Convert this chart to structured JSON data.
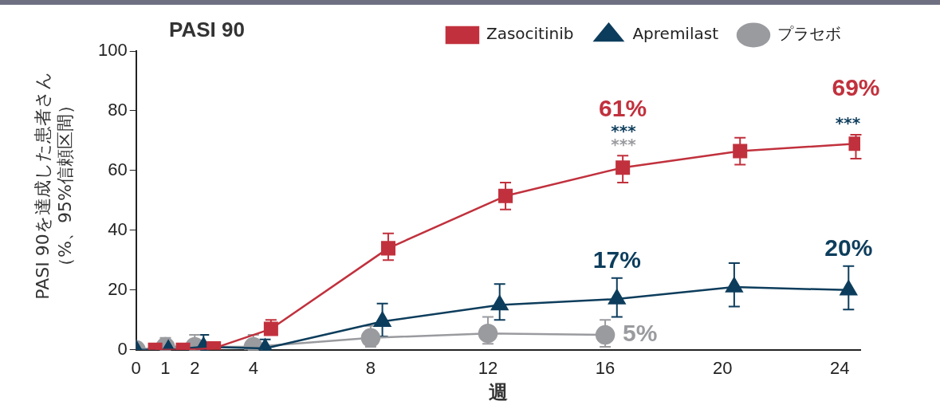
{
  "chart_data": {
    "type": "line",
    "title": "PASI 90",
    "xlabel": "週",
    "ylabel": "PASI 90を達成した患者さん（%、95%信頼区間）",
    "xlim": [
      0,
      24.7
    ],
    "xticks": [
      0,
      1,
      2,
      4,
      8,
      12,
      16,
      20,
      24
    ],
    "ylim": [
      0,
      100
    ],
    "yticks": [
      0,
      20,
      40,
      60,
      80,
      100
    ],
    "grid": false,
    "legend": "top right",
    "line_style": "solid",
    "series": [
      {
        "name": "Zasocitinib",
        "color": "#c1313d",
        "marker": "square",
        "x": [
          0.65,
          1.6,
          2.65,
          4.6,
          8.6,
          12.6,
          16.6,
          20.6,
          24.55
        ],
        "values": [
          0,
          0,
          0.5,
          7,
          34,
          51.5,
          61,
          66.5,
          69
        ],
        "errors": [
          null,
          null,
          null,
          [
            5,
            10
          ],
          [
            30,
            39
          ],
          [
            47,
            56
          ],
          [
            56,
            65
          ],
          [
            62,
            71
          ],
          [
            64,
            72
          ]
        ],
        "value_labels": [
          null,
          null,
          null,
          null,
          null,
          null,
          "61%",
          null,
          "69%"
        ]
      },
      {
        "name": "Apremilast",
        "color": "#0d3d5c",
        "marker": "triangle",
        "x": [
          0,
          1.1,
          2.3,
          4.4,
          8.4,
          12.4,
          16.4,
          20.4,
          24.3
        ],
        "values": [
          0,
          0,
          1,
          0.5,
          9.5,
          15,
          17,
          21,
          20
        ],
        "errors": [
          null,
          null,
          [
            0,
            5
          ],
          [
            0,
            3.5
          ],
          [
            4.5,
            15.5
          ],
          [
            10,
            22
          ],
          [
            11,
            24
          ],
          [
            14.5,
            29
          ],
          [
            13.5,
            28
          ]
        ],
        "value_labels": [
          null,
          null,
          null,
          null,
          null,
          null,
          "17%",
          null,
          "20%"
        ]
      },
      {
        "name": "プラセボ",
        "color": "#9a9b9f",
        "marker": "circle",
        "x": [
          0,
          1,
          2,
          4,
          8,
          12,
          16
        ],
        "values": [
          0,
          1,
          1,
          1,
          4,
          5.5,
          5
        ],
        "errors": [
          null,
          [
            0,
            4
          ],
          [
            0,
            5
          ],
          [
            0,
            5
          ],
          [
            1,
            8
          ],
          [
            2,
            11
          ],
          [
            1,
            10
          ]
        ],
        "value_labels": [
          null,
          null,
          null,
          null,
          null,
          null,
          "5%"
        ]
      }
    ],
    "annotations": [
      "***",
      "***",
      "***"
    ]
  }
}
